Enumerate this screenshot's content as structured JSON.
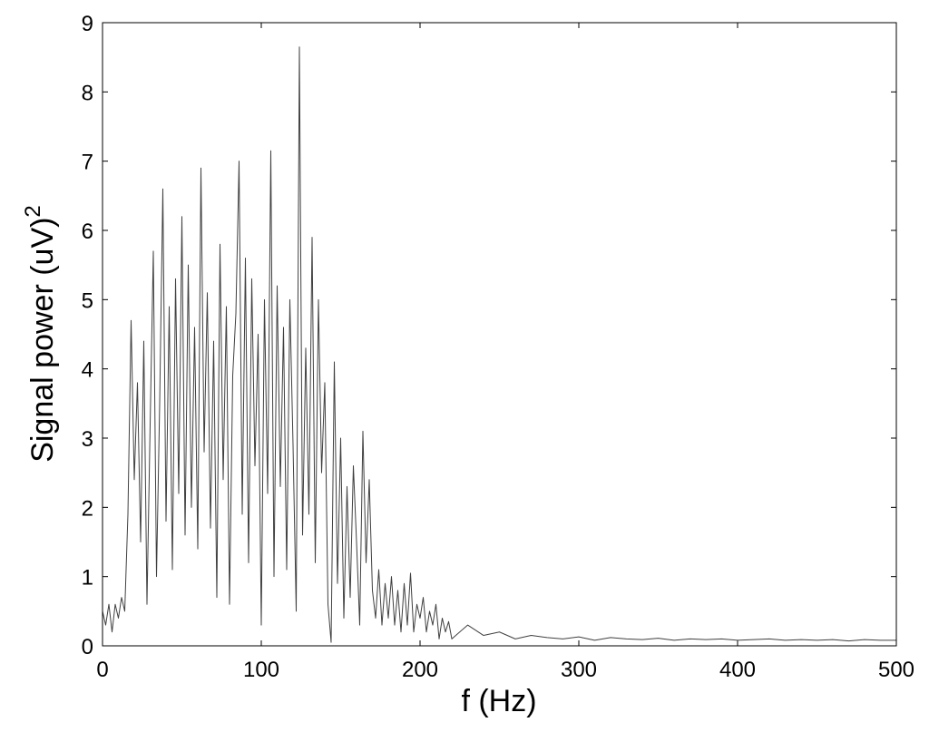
{
  "chart_data": {
    "type": "line",
    "xlabel": "f (Hz)",
    "ylabel": "Signal power (uV)",
    "ylabel_superscript": "2",
    "x": [
      0,
      2,
      4,
      6,
      8,
      10,
      12,
      14,
      16,
      18,
      20,
      22,
      24,
      26,
      28,
      30,
      32,
      34,
      36,
      38,
      40,
      42,
      44,
      46,
      48,
      50,
      52,
      54,
      56,
      58,
      60,
      62,
      64,
      66,
      68,
      70,
      72,
      74,
      76,
      78,
      80,
      82,
      84,
      86,
      88,
      90,
      92,
      94,
      96,
      98,
      100,
      102,
      104,
      106,
      108,
      110,
      112,
      114,
      116,
      118,
      120,
      122,
      124,
      126,
      128,
      130,
      132,
      134,
      136,
      138,
      140,
      142,
      144,
      146,
      148,
      150,
      152,
      154,
      156,
      158,
      160,
      162,
      164,
      166,
      168,
      170,
      172,
      174,
      176,
      178,
      180,
      182,
      184,
      186,
      188,
      190,
      192,
      194,
      196,
      198,
      200,
      202,
      204,
      206,
      208,
      210,
      212,
      214,
      216,
      218,
      220,
      230,
      240,
      250,
      260,
      270,
      280,
      290,
      300,
      310,
      320,
      330,
      340,
      350,
      360,
      370,
      380,
      390,
      400,
      410,
      420,
      430,
      440,
      450,
      460,
      470,
      480,
      490,
      500
    ],
    "series": [
      {
        "color": "#404040",
        "values": [
          0.5,
          0.3,
          0.6,
          0.2,
          0.6,
          0.4,
          0.7,
          0.5,
          1.9,
          4.7,
          2.4,
          3.8,
          1.5,
          4.4,
          0.6,
          3.2,
          5.7,
          1.0,
          3.5,
          6.6,
          1.8,
          4.9,
          1.1,
          5.3,
          2.2,
          6.2,
          1.6,
          5.5,
          2.0,
          4.6,
          1.4,
          6.9,
          2.8,
          5.1,
          1.7,
          4.4,
          0.7,
          5.8,
          2.4,
          4.9,
          0.6,
          3.9,
          4.8,
          7.0,
          1.9,
          5.6,
          1.2,
          5.3,
          2.6,
          4.5,
          0.3,
          5.0,
          2.2,
          7.15,
          1.0,
          5.2,
          2.3,
          4.6,
          1.1,
          5.0,
          2.9,
          0.5,
          8.65,
          1.6,
          4.3,
          1.9,
          5.9,
          1.2,
          5.0,
          2.5,
          3.8,
          0.6,
          0.05,
          4.1,
          0.9,
          3.0,
          0.4,
          2.3,
          0.7,
          2.6,
          1.5,
          0.3,
          3.1,
          1.2,
          2.4,
          0.8,
          0.4,
          1.1,
          0.3,
          0.9,
          0.4,
          1.0,
          0.3,
          0.8,
          0.2,
          0.9,
          0.3,
          1.05,
          0.2,
          0.6,
          0.4,
          0.7,
          0.2,
          0.5,
          0.3,
          0.6,
          0.1,
          0.4,
          0.2,
          0.35,
          0.1,
          0.3,
          0.15,
          0.2,
          0.1,
          0.15,
          0.12,
          0.1,
          0.13,
          0.08,
          0.12,
          0.1,
          0.09,
          0.11,
          0.08,
          0.1,
          0.09,
          0.1,
          0.08,
          0.09,
          0.1,
          0.08,
          0.09,
          0.08,
          0.09,
          0.07,
          0.09,
          0.08,
          0.08
        ]
      }
    ],
    "xlim": [
      0,
      500
    ],
    "xticks": [
      0,
      100,
      200,
      300,
      400,
      500
    ],
    "ylim": [
      0,
      9
    ],
    "yticks": [
      0,
      1,
      2,
      3,
      4,
      5,
      6,
      7,
      8,
      9
    ],
    "grid": false
  }
}
